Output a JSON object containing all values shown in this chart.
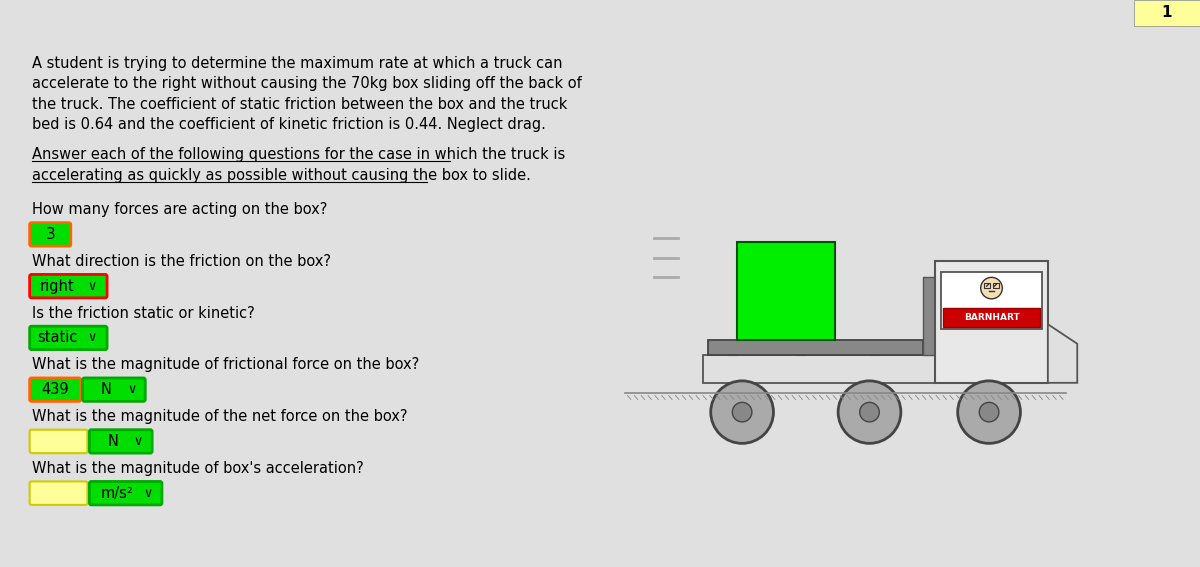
{
  "bg_top_bar_color": "#4a90d9",
  "bg_main_color": "#e0e0e0",
  "bg_content_color": "#ffffff",
  "page_number": "1",
  "page_num_bg": "#ffff99",
  "paragraph1_lines": [
    "A student is trying to determine the maximum rate at which a truck can",
    "accelerate to the right without causing the 70kg box sliding off the back of",
    "the truck. The coefficient of static friction between the box and the truck",
    "bed is 0.64 and the coefficient of kinetic friction is 0.44. Neglect drag."
  ],
  "paragraph2_lines": [
    "Answer each of the following questions for the case in which the truck is",
    "accelerating as quickly as possible without causing the box to slide."
  ],
  "q1": "How many forces are acting on the box?",
  "a1": "3",
  "a1_bg": "#00dd00",
  "a1_border": "#ff6600",
  "q2": "What direction is the friction on the box?",
  "a2": "right",
  "a2_bg": "#00dd00",
  "a2_border": "#ff0000",
  "q3": "Is the friction static or kinetic?",
  "a3": "static",
  "a3_bg": "#00dd00",
  "a3_border": "#00aa00",
  "q4": "What is the magnitude of frictional force on the box?",
  "a4_val": "439",
  "a4_unit": "N",
  "a4_val_bg": "#00dd00",
  "a4_val_border": "#ff6600",
  "a4_unit_bg": "#00dd00",
  "q5": "What is the magnitude of the net force on the box?",
  "a5_val": "",
  "a5_unit": "N",
  "a5_val_bg": "#ffff99",
  "a5_unit_bg": "#00dd00",
  "q6": "What is the magnitude of box's acceleration?",
  "a6_val": "",
  "a6_unit": "m/s²",
  "a6_val_bg": "#ffff99",
  "a6_unit_bg": "#00dd00",
  "box_color": "#00ee00",
  "cabin_sign_text": "BARNHART",
  "cabin_sign_text_color": "#ffffff",
  "cabin_sign_bg": "#cc0000"
}
